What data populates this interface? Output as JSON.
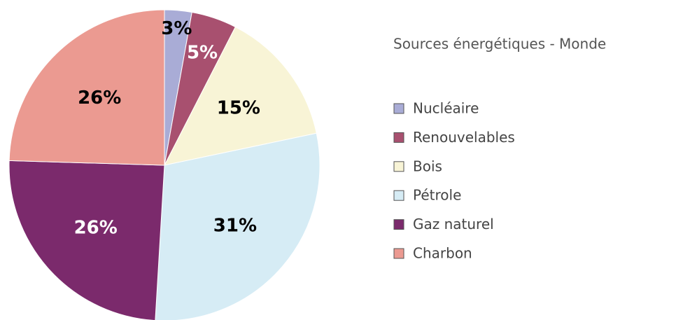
{
  "chart_data": {
    "type": "pie",
    "title": "Sources énergétiques - Monde",
    "categories": [
      "Nucléaire",
      "Renouvelables",
      "Bois",
      "Pétrole",
      "Gaz naturel",
      "Charbon"
    ],
    "values": [
      3,
      5,
      15,
      31,
      26,
      26
    ],
    "value_labels": [
      "3%",
      "5%",
      "15%",
      "31%",
      "26%",
      "26%"
    ],
    "colors": [
      "#a9acd6",
      "#a8506f",
      "#f8f4d6",
      "#d6ecf5",
      "#7b2a6c",
      "#eb9a91"
    ],
    "legend": "right"
  }
}
